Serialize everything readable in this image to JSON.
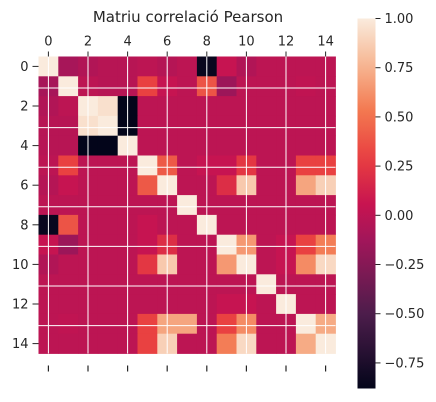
{
  "chart_data": {
    "type": "heatmap",
    "title": "Matriu correlació Pearson",
    "xlabel": "",
    "ylabel": "",
    "x_ticks": [
      "0",
      "2",
      "4",
      "6",
      "8",
      "10",
      "12",
      "14"
    ],
    "y_ticks": [
      "0",
      "2",
      "4",
      "6",
      "8",
      "10",
      "12",
      "14"
    ],
    "colorbar": {
      "ticks": [
        "1.00",
        "0.75",
        "0.50",
        "0.25",
        "0.00",
        "−0.25",
        "−0.50",
        "−0.75"
      ],
      "tick_values": [
        1.0,
        0.75,
        0.5,
        0.25,
        0.0,
        -0.25,
        -0.5,
        -0.75
      ],
      "range": [
        -0.88,
        1.0
      ],
      "colormap": "rocket"
    },
    "grid": true,
    "matrix": [
      [
        1.0,
        -0.1,
        -0.05,
        -0.02,
        -0.02,
        0.0,
        -0.03,
        0.0,
        -0.85,
        0.05,
        -0.05,
        0.0,
        0.0,
        0.0,
        0.0
      ],
      [
        -0.1,
        1.0,
        0.0,
        -0.02,
        -0.02,
        0.3,
        0.05,
        0.0,
        0.38,
        -0.15,
        0.0,
        0.0,
        0.0,
        0.02,
        0.0
      ],
      [
        -0.05,
        0.0,
        1.0,
        0.95,
        -0.88,
        0.0,
        0.0,
        0.0,
        0.0,
        0.0,
        0.0,
        0.0,
        0.0,
        0.0,
        0.0
      ],
      [
        -0.02,
        -0.02,
        0.95,
        1.0,
        -0.88,
        0.0,
        0.0,
        0.0,
        0.0,
        0.0,
        0.0,
        0.0,
        0.0,
        0.0,
        0.0
      ],
      [
        -0.02,
        -0.02,
        -0.88,
        -0.88,
        1.0,
        0.0,
        0.0,
        0.0,
        0.0,
        0.0,
        0.0,
        0.0,
        0.0,
        0.0,
        0.0
      ],
      [
        0.0,
        0.3,
        0.0,
        0.0,
        0.0,
        1.0,
        0.4,
        0.0,
        0.05,
        0.05,
        0.25,
        0.0,
        0.0,
        0.3,
        0.3
      ],
      [
        -0.03,
        0.05,
        0.0,
        0.0,
        0.0,
        0.4,
        1.0,
        0.0,
        0.0,
        0.2,
        0.85,
        0.0,
        0.0,
        0.7,
        0.88
      ],
      [
        0.0,
        0.0,
        0.0,
        0.0,
        0.0,
        0.0,
        0.0,
        1.0,
        0.0,
        0.0,
        0.0,
        0.0,
        0.0,
        0.0,
        0.0
      ],
      [
        -0.85,
        0.38,
        0.0,
        0.0,
        0.0,
        0.05,
        0.0,
        0.0,
        1.0,
        0.0,
        0.0,
        0.0,
        0.0,
        0.0,
        0.0
      ],
      [
        0.05,
        -0.15,
        0.0,
        0.0,
        0.0,
        0.05,
        0.2,
        0.0,
        0.0,
        1.0,
        0.65,
        0.0,
        0.05,
        0.3,
        0.55
      ],
      [
        -0.05,
        0.0,
        0.0,
        0.0,
        0.0,
        0.25,
        0.85,
        0.0,
        0.0,
        0.65,
        1.0,
        0.0,
        0.05,
        0.6,
        0.92
      ],
      [
        0.0,
        0.0,
        0.0,
        0.0,
        0.0,
        0.0,
        0.0,
        0.0,
        0.0,
        0.0,
        0.0,
        1.0,
        0.0,
        0.0,
        0.0
      ],
      [
        0.0,
        0.0,
        0.0,
        0.0,
        0.0,
        0.0,
        0.0,
        0.0,
        0.0,
        0.05,
        0.05,
        0.0,
        1.0,
        0.0,
        0.0
      ],
      [
        0.0,
        0.02,
        0.0,
        0.0,
        0.0,
        0.3,
        0.7,
        0.7,
        0.0,
        0.3,
        0.6,
        0.0,
        0.0,
        1.0,
        0.72
      ],
      [
        0.0,
        0.0,
        0.0,
        0.0,
        0.0,
        0.3,
        0.88,
        0.0,
        0.0,
        0.55,
        0.92,
        0.0,
        0.0,
        0.72,
        1.0
      ]
    ]
  }
}
